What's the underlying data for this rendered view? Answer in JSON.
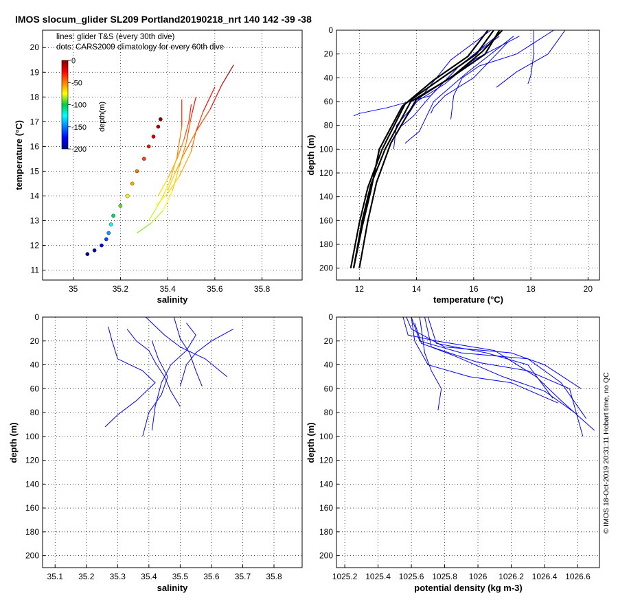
{
  "chart_data": [
    {
      "type": "scatter",
      "title": "IMOS slocum_glider SL209 Portland20190218_nrt 140  142  -39  -38",
      "xlabel": "salinity",
      "ylabel": "temperature (°C)",
      "xlim": [
        34.87,
        35.97
      ],
      "ylim": [
        10.6,
        20.7
      ],
      "xticks": [
        35,
        35.2,
        35.4,
        35.6,
        35.8
      ],
      "xtick_labels": [
        "35",
        "35.2",
        "35.4",
        "35.6",
        "35.8"
      ],
      "yticks": [
        11,
        12,
        13,
        14,
        15,
        16,
        17,
        18,
        19,
        20
      ],
      "ytick_labels": [
        "11",
        "12",
        "13",
        "14",
        "15",
        "16",
        "17",
        "18",
        "19",
        "20"
      ],
      "grid": true,
      "notes": [
        "lines: glider T&S (every 30th dive)",
        "dots: CARS2009 climatology for every 60th dive"
      ],
      "colorbar": {
        "label": "depth(m)",
        "ticks": [
          0,
          -50,
          -100,
          -150,
          -200
        ],
        "tick_labels": [
          "0",
          "-50",
          "-100",
          "-150",
          "-200"
        ]
      },
      "climatology_dots": [
        {
          "x": 35.06,
          "y": 11.65,
          "depth": 200
        },
        {
          "x": 35.09,
          "y": 11.8,
          "depth": 190
        },
        {
          "x": 35.12,
          "y": 12.0,
          "depth": 175
        },
        {
          "x": 35.14,
          "y": 12.25,
          "depth": 160
        },
        {
          "x": 35.15,
          "y": 12.5,
          "depth": 145
        },
        {
          "x": 35.16,
          "y": 12.85,
          "depth": 125
        },
        {
          "x": 35.17,
          "y": 13.2,
          "depth": 105
        },
        {
          "x": 35.2,
          "y": 13.6,
          "depth": 90
        },
        {
          "x": 35.23,
          "y": 14.0,
          "depth": 75
        },
        {
          "x": 35.25,
          "y": 14.5,
          "depth": 60
        },
        {
          "x": 35.27,
          "y": 15.0,
          "depth": 48
        },
        {
          "x": 35.3,
          "y": 15.5,
          "depth": 38
        },
        {
          "x": 35.32,
          "y": 16.0,
          "depth": 28
        },
        {
          "x": 35.34,
          "y": 16.4,
          "depth": 18
        },
        {
          "x": 35.36,
          "y": 16.8,
          "depth": 8
        },
        {
          "x": 35.37,
          "y": 17.1,
          "depth": 0
        }
      ],
      "glider_lines": [
        {
          "x": [
            35.27,
            35.33,
            35.38,
            35.42,
            35.45,
            35.48,
            35.5,
            35.52
          ],
          "y": [
            12.5,
            12.9,
            13.4,
            14.2,
            15.2,
            16.2,
            17.2,
            18.0
          ]
        },
        {
          "x": [
            35.35,
            35.4,
            35.45,
            35.5,
            35.52,
            35.55,
            35.6
          ],
          "y": [
            13.6,
            14.1,
            14.8,
            15.8,
            16.6,
            17.4,
            18.4
          ]
        },
        {
          "x": [
            35.4,
            35.43,
            35.47,
            35.52,
            35.58,
            35.63,
            35.68
          ],
          "y": [
            14.2,
            14.9,
            15.7,
            16.6,
            17.5,
            18.5,
            19.3
          ]
        },
        {
          "x": [
            35.36,
            35.4,
            35.44,
            35.47,
            35.49,
            35.5
          ],
          "y": [
            14.0,
            14.7,
            15.5,
            16.3,
            17.0,
            17.7
          ]
        },
        {
          "x": [
            35.32,
            35.37,
            35.41,
            35.44,
            35.46,
            35.46
          ],
          "y": [
            13.0,
            13.8,
            14.6,
            15.6,
            16.8,
            17.9
          ]
        }
      ]
    },
    {
      "type": "line",
      "xlabel": "temperature (°C)",
      "ylabel": "depth (m)",
      "xlim": [
        11.2,
        20.4
      ],
      "ylim": [
        0,
        210
      ],
      "y_reversed": true,
      "xticks": [
        12,
        14,
        16,
        18,
        20
      ],
      "xtick_labels": [
        "12",
        "14",
        "16",
        "18",
        "20"
      ],
      "yticks": [
        0,
        20,
        40,
        60,
        80,
        100,
        120,
        140,
        160,
        180,
        200
      ],
      "ytick_labels": [
        "0",
        "20",
        "40",
        "60",
        "80",
        "100",
        "120",
        "140",
        "160",
        "180",
        "200"
      ],
      "grid": true,
      "series": [
        {
          "color": "#0000ff",
          "x": [
            18.8,
            17.5,
            16.2,
            15.6,
            15.3,
            15.2
          ],
          "y": [
            0,
            20,
            30,
            40,
            55,
            75
          ]
        },
        {
          "color": "#0000ff",
          "x": [
            17.6,
            16.0,
            15.0,
            14.0,
            13.6
          ],
          "y": [
            5,
            25,
            45,
            60,
            75
          ]
        },
        {
          "color": "#0000ff",
          "x": [
            18.1,
            18.1,
            18.0,
            17.9
          ],
          "y": [
            0,
            20,
            38,
            45
          ]
        },
        {
          "color": "#0000ff",
          "x": [
            19.2,
            18.6,
            17.5,
            16.8
          ],
          "y": [
            0,
            20,
            35,
            48
          ]
        },
        {
          "color": "#0000ff",
          "x": [
            16.6,
            15.2,
            14.2,
            13.3,
            13.2
          ],
          "y": [
            0,
            25,
            55,
            80,
            100
          ]
        },
        {
          "color": "#0000ff",
          "x": [
            17.2,
            16.0,
            15.0,
            14.6,
            14.5
          ],
          "y": [
            10,
            40,
            55,
            65,
            70
          ]
        },
        {
          "color": "#0000ff",
          "x": [
            16.9,
            15.5,
            14.5,
            13.0,
            12.0,
            11.8
          ],
          "y": [
            5,
            30,
            55,
            65,
            70,
            72
          ]
        },
        {
          "color": "#0000ff",
          "x": [
            17.4,
            15.8,
            14.6,
            14.1,
            13.6
          ],
          "y": [
            5,
            35,
            60,
            85,
            95
          ]
        },
        {
          "color": "#0000ff",
          "x": [
            16.8,
            15.5,
            14.5,
            13.9,
            13.5
          ],
          "y": [
            5,
            30,
            55,
            72,
            80
          ]
        },
        {
          "color": "#000000",
          "x": [
            16.9,
            16.4,
            15.2,
            13.8,
            12.9,
            12.4,
            12.1,
            11.8
          ],
          "y": [
            0,
            20,
            40,
            60,
            100,
            130,
            160,
            200
          ]
        },
        {
          "color": "#000000",
          "x": [
            16.7,
            16.1,
            14.9,
            13.6,
            12.8,
            12.3,
            12.0,
            11.7
          ],
          "y": [
            0,
            20,
            40,
            62,
            100,
            132,
            162,
            200
          ]
        },
        {
          "color": "#000000",
          "x": [
            16.5,
            15.8,
            14.6,
            13.5,
            12.7,
            12.4,
            12.1,
            11.8
          ],
          "y": [
            0,
            22,
            42,
            64,
            100,
            135,
            165,
            200
          ]
        },
        {
          "color": "#000000",
          "x": [
            17.0,
            16.3,
            15.3,
            14.0,
            13.1,
            12.6,
            12.3,
            12.0
          ],
          "y": [
            0,
            18,
            38,
            58,
            95,
            128,
            160,
            200
          ]
        }
      ]
    },
    {
      "type": "line",
      "xlabel": "salinity",
      "ylabel": "depth (m)",
      "xlim": [
        35.06,
        35.89
      ],
      "ylim": [
        0,
        210
      ],
      "y_reversed": true,
      "xticks": [
        35.1,
        35.2,
        35.3,
        35.4,
        35.5,
        35.6,
        35.7,
        35.8
      ],
      "xtick_labels": [
        "35.1",
        "35.2",
        "35.3",
        "35.4",
        "35.5",
        "35.6",
        "35.7",
        "35.8"
      ],
      "yticks": [
        0,
        20,
        40,
        60,
        80,
        100,
        120,
        140,
        160,
        180,
        200
      ],
      "ytick_labels": [
        "0",
        "20",
        "40",
        "60",
        "80",
        "100",
        "120",
        "140",
        "160",
        "180",
        "200"
      ],
      "grid": true,
      "series": [
        {
          "color": "#0000ff",
          "x": [
            35.27,
            35.28,
            35.3,
            35.38,
            35.42,
            35.36,
            35.3,
            35.26
          ],
          "y": [
            8,
            18,
            35,
            45,
            55,
            70,
            82,
            92
          ]
        },
        {
          "color": "#0000ff",
          "x": [
            35.52,
            35.55,
            35.52,
            35.47,
            35.44,
            35.42,
            35.41
          ],
          "y": [
            5,
            15,
            28,
            40,
            55,
            75,
            95
          ]
        },
        {
          "color": "#0000ff",
          "x": [
            35.67,
            35.6,
            35.55,
            35.52,
            35.5
          ],
          "y": [
            10,
            20,
            30,
            40,
            58
          ]
        },
        {
          "color": "#0000ff",
          "x": [
            35.39,
            35.45,
            35.5,
            35.58,
            35.65
          ],
          "y": [
            0,
            15,
            25,
            35,
            50
          ]
        },
        {
          "color": "#0000ff",
          "x": [
            35.41,
            35.43,
            35.46,
            35.44,
            35.4,
            35.38
          ],
          "y": [
            20,
            35,
            50,
            65,
            80,
            100
          ]
        },
        {
          "color": "#0000ff",
          "x": [
            35.48,
            35.5,
            35.53,
            35.55,
            35.57
          ],
          "y": [
            0,
            18,
            30,
            45,
            58
          ]
        },
        {
          "color": "#0000ff",
          "x": [
            35.33,
            35.36,
            35.4,
            35.42,
            35.45,
            35.47,
            35.5
          ],
          "y": [
            10,
            20,
            28,
            38,
            50,
            62,
            75
          ]
        }
      ]
    },
    {
      "type": "line",
      "xlabel": "potential density (kg m-3)",
      "ylabel": "depth (m)",
      "xlim": [
        1025.15,
        1026.73
      ],
      "ylim": [
        0,
        210
      ],
      "y_reversed": true,
      "xticks": [
        1025.2,
        1025.4,
        1025.6,
        1025.8,
        1026,
        1026.2,
        1026.4,
        1026.6
      ],
      "xtick_labels": [
        "1025.2",
        "1025.4",
        "1025.6",
        "1025.8",
        "1026",
        "1026.2",
        "1026.4",
        "1026.6"
      ],
      "yticks": [
        0,
        20,
        40,
        60,
        80,
        100,
        120,
        140,
        160,
        180,
        200
      ],
      "ytick_labels": [
        "0",
        "20",
        "40",
        "60",
        "80",
        "100",
        "120",
        "140",
        "160",
        "180",
        "200"
      ],
      "grid": true,
      "series": [
        {
          "color": "#0000ff",
          "x": [
            1025.55,
            1025.58,
            1025.75,
            1026.1,
            1026.35,
            1026.5,
            1026.7
          ],
          "y": [
            0,
            15,
            20,
            28,
            50,
            70,
            95
          ]
        },
        {
          "color": "#0000ff",
          "x": [
            1025.6,
            1025.65,
            1025.9,
            1026.3,
            1026.5,
            1026.65
          ],
          "y": [
            0,
            20,
            30,
            35,
            55,
            85
          ]
        },
        {
          "color": "#0000ff",
          "x": [
            1025.68,
            1025.72,
            1026.0,
            1026.3,
            1026.55,
            1026.63
          ],
          "y": [
            0,
            25,
            38,
            45,
            60,
            100
          ]
        },
        {
          "color": "#0000ff",
          "x": [
            1025.57,
            1025.6,
            1025.8,
            1026.2,
            1026.4,
            1026.62
          ],
          "y": [
            0,
            10,
            25,
            30,
            40,
            60
          ]
        },
        {
          "color": "#0000ff",
          "x": [
            1025.7,
            1025.75,
            1026.05,
            1026.3,
            1026.45
          ],
          "y": [
            0,
            22,
            30,
            40,
            68
          ]
        },
        {
          "color": "#0000ff",
          "x": [
            1025.62,
            1025.66,
            1025.85,
            1026.15,
            1026.4,
            1026.58
          ],
          "y": [
            5,
            22,
            32,
            50,
            62,
            80
          ]
        },
        {
          "color": "#0000ff",
          "x": [
            1025.6,
            1025.62,
            1025.7,
            1025.95,
            1026.2,
            1026.48
          ],
          "y": [
            0,
            20,
            40,
            50,
            55,
            72
          ]
        },
        {
          "color": "#0000ff",
          "x": [
            1025.65,
            1025.68,
            1025.72,
            1025.78,
            1025.76
          ],
          "y": [
            0,
            30,
            45,
            60,
            78
          ]
        }
      ]
    }
  ],
  "side_text": "© IMOS 18-Oct-2019 20:31:11 Hobart time, no QC"
}
